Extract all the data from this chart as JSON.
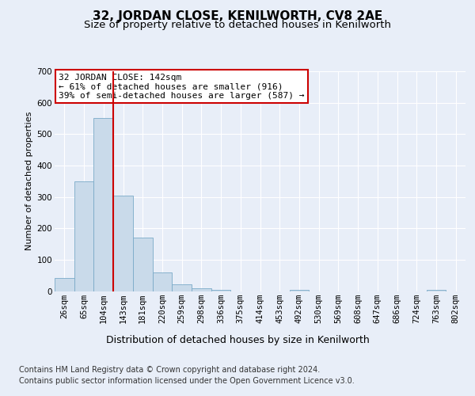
{
  "title": "32, JORDAN CLOSE, KENILWORTH, CV8 2AE",
  "subtitle": "Size of property relative to detached houses in Kenilworth",
  "xlabel": "Distribution of detached houses by size in Kenilworth",
  "ylabel": "Number of detached properties",
  "categories": [
    "26sqm",
    "65sqm",
    "104sqm",
    "143sqm",
    "181sqm",
    "220sqm",
    "259sqm",
    "298sqm",
    "336sqm",
    "375sqm",
    "414sqm",
    "453sqm",
    "492sqm",
    "530sqm",
    "569sqm",
    "608sqm",
    "647sqm",
    "686sqm",
    "724sqm",
    "763sqm",
    "802sqm"
  ],
  "bar_values": [
    42,
    350,
    550,
    303,
    170,
    60,
    22,
    10,
    5,
    0,
    0,
    0,
    5,
    0,
    0,
    0,
    0,
    0,
    0,
    5,
    0
  ],
  "bar_color": "#c9daea",
  "bar_edge_color": "#7aaac8",
  "vline_index": 3,
  "vline_color": "#cc0000",
  "ylim": [
    0,
    700
  ],
  "yticks": [
    0,
    100,
    200,
    300,
    400,
    500,
    600,
    700
  ],
  "annotation_text": "32 JORDAN CLOSE: 142sqm\n← 61% of detached houses are smaller (916)\n39% of semi-detached houses are larger (587) →",
  "annotation_box_facecolor": "#ffffff",
  "annotation_box_edgecolor": "#cc0000",
  "footer_line1": "Contains HM Land Registry data © Crown copyright and database right 2024.",
  "footer_line2": "Contains public sector information licensed under the Open Government Licence v3.0.",
  "background_color": "#e8eef8",
  "plot_background_color": "#e8eef8",
  "grid_color": "#ffffff",
  "title_fontsize": 11,
  "subtitle_fontsize": 9.5,
  "ylabel_fontsize": 8,
  "xlabel_fontsize": 9,
  "annotation_fontsize": 8,
  "footer_fontsize": 7,
  "tick_fontsize": 7.5
}
